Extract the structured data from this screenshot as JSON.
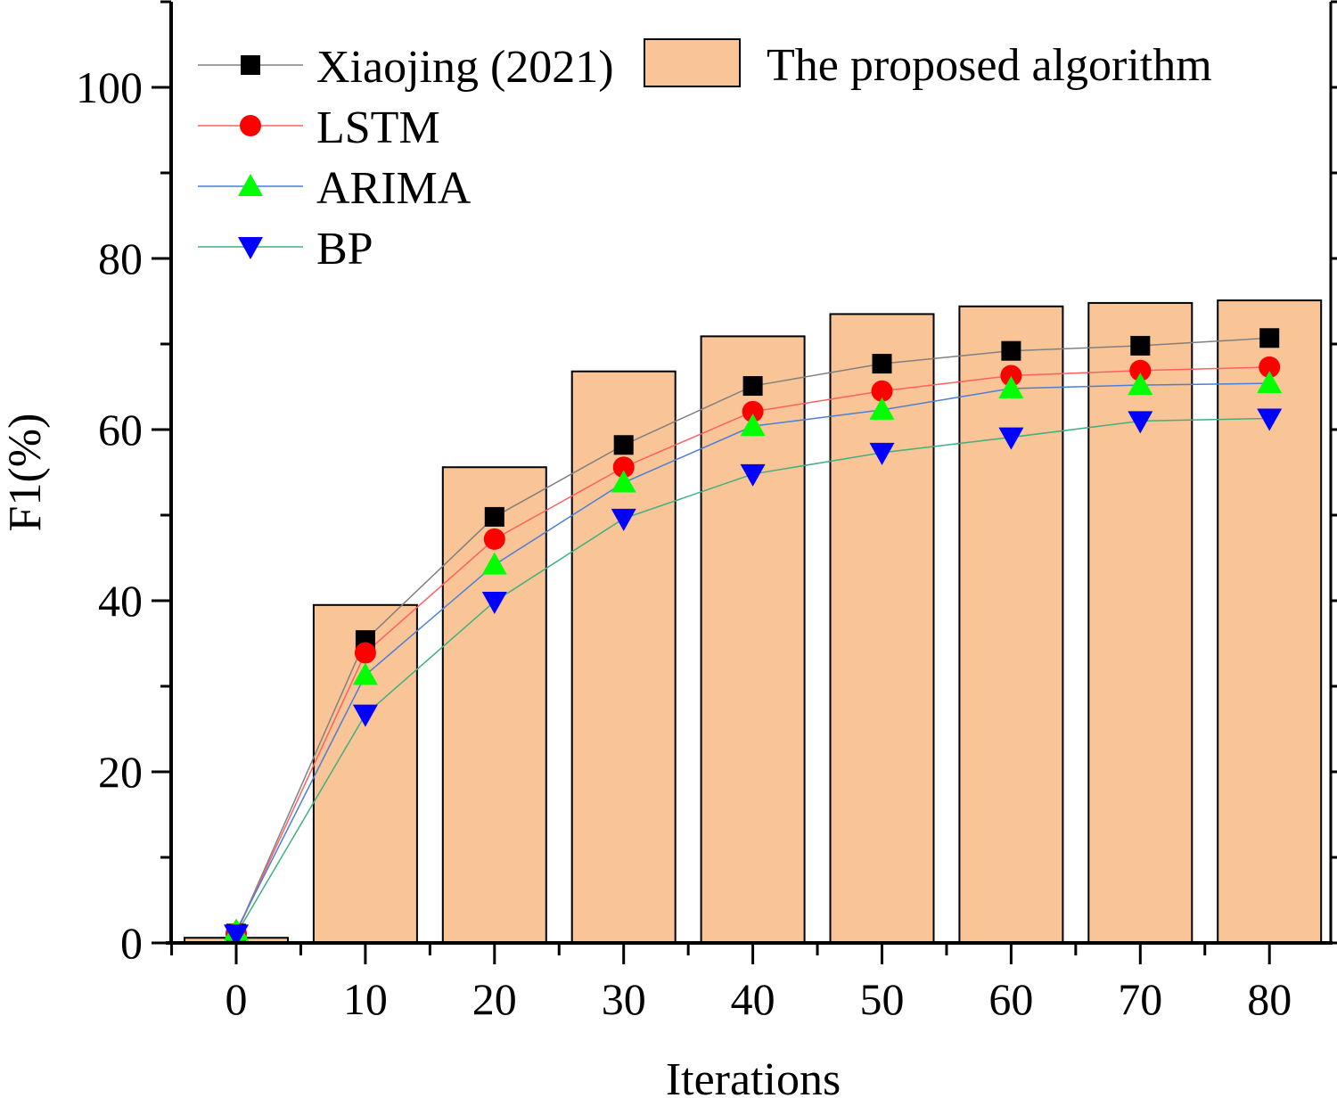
{
  "chart_data": {
    "type": "bar+line",
    "title": "",
    "xlabel": "Iterations",
    "ylabel": "F1(%)",
    "xlim": [
      -5,
      85
    ],
    "ylim": [
      0,
      110
    ],
    "x": [
      0,
      10,
      20,
      30,
      40,
      50,
      60,
      70,
      80
    ],
    "xticks": [
      "0",
      "10",
      "20",
      "30",
      "40",
      "50",
      "60",
      "70",
      "80"
    ],
    "yticks": [
      "0",
      "20",
      "40",
      "60",
      "80",
      "100"
    ],
    "legend_position": "top-left",
    "bars": {
      "name": "The proposed algorithm",
      "color": "#F9C496",
      "values": [
        0.6,
        39.5,
        55.6,
        66.8,
        70.9,
        73.5,
        74.4,
        74.8,
        75.1
      ]
    },
    "series": [
      {
        "name": "Xiaojing (2021)",
        "color": "#000000",
        "line_color": "#808080",
        "marker": "square",
        "values": [
          1.1,
          35.4,
          49.8,
          58.2,
          65.1,
          67.7,
          69.2,
          69.8,
          70.7
        ]
      },
      {
        "name": "LSTM",
        "color": "#FF0000",
        "line_color": "#FF6060",
        "marker": "circle",
        "values": [
          1.1,
          33.9,
          47.2,
          55.6,
          62.1,
          64.5,
          66.3,
          66.9,
          67.3
        ]
      },
      {
        "name": "ARIMA",
        "color": "#00FF00",
        "line_color": "#4A7FD8",
        "marker": "triangle-up",
        "values": [
          1.4,
          31.3,
          44.2,
          53.8,
          60.4,
          62.3,
          64.8,
          65.2,
          65.4
        ]
      },
      {
        "name": "BP",
        "color": "#0000FF",
        "line_color": "#40B080",
        "marker": "triangle-down",
        "values": [
          1.0,
          26.7,
          39.9,
          49.6,
          54.8,
          57.3,
          59.1,
          61.0,
          61.3
        ]
      }
    ]
  }
}
